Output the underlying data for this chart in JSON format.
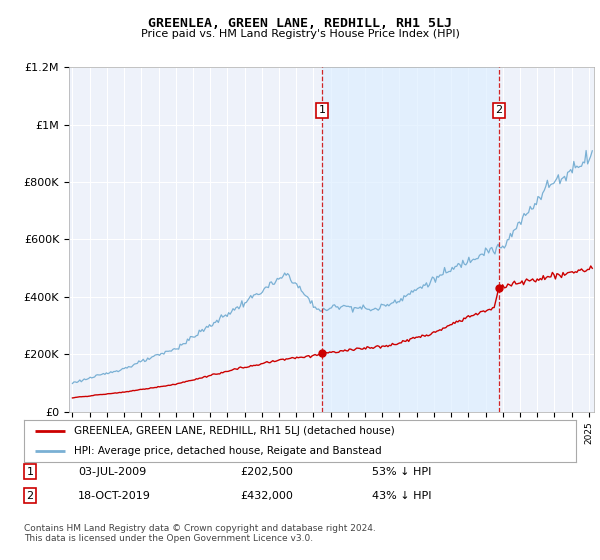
{
  "title": "GREENLEA, GREEN LANE, REDHILL, RH1 5LJ",
  "subtitle": "Price paid vs. HM Land Registry's House Price Index (HPI)",
  "legend_red": "GREENLEA, GREEN LANE, REDHILL, RH1 5LJ (detached house)",
  "legend_blue": "HPI: Average price, detached house, Reigate and Banstead",
  "footer": "Contains HM Land Registry data © Crown copyright and database right 2024.\nThis data is licensed under the Open Government Licence v3.0.",
  "point1_date": "03-JUL-2009",
  "point1_price": "£202,500",
  "point1_hpi": "53% ↓ HPI",
  "point1_year": 2009.5,
  "point1_value": 202500,
  "point2_date": "18-OCT-2019",
  "point2_price": "£432,000",
  "point2_hpi": "43% ↓ HPI",
  "point2_year": 2019.79,
  "point2_value": 432000,
  "ylim": [
    0,
    1200000
  ],
  "xlim_start": 1994.8,
  "xlim_end": 2025.3,
  "red_color": "#cc0000",
  "blue_color": "#7ab0d4",
  "shade_color": "#ddeeff",
  "vline_color": "#cc0000",
  "background_color": "#ffffff",
  "plot_bg_color": "#eef2fa",
  "grid_color": "#ffffff"
}
